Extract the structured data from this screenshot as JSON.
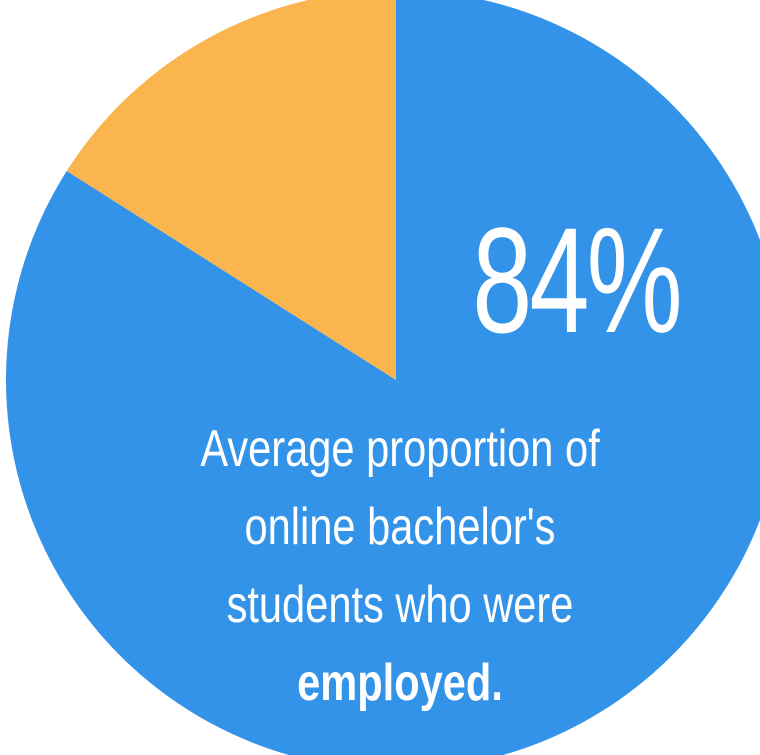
{
  "chart_data": {
    "type": "pie",
    "title": "",
    "slices": [
      {
        "value": 84,
        "color": "#3293e8"
      },
      {
        "value": 16,
        "color": "#fbb54e"
      }
    ],
    "big_value_label": "84%",
    "caption_lines": [
      "Average proportion of",
      "online bachelor's",
      "students who were",
      "employed."
    ]
  }
}
